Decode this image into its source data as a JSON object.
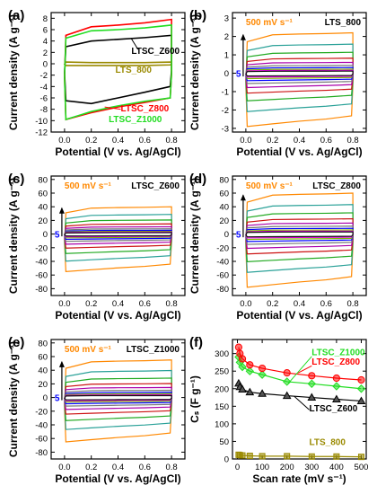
{
  "chart_data": [
    {
      "id": "a",
      "type": "line",
      "panel_label": "(a)",
      "xlabel": "Potential (V vs. Ag/AgCl)",
      "ylabel": "Current density (A g⁻¹)",
      "xlim": [
        -0.1,
        0.9
      ],
      "ylim": [
        -12,
        9
      ],
      "xticks": [
        "0.0",
        "0.2",
        "0.4",
        "0.6",
        "0.8"
      ],
      "yticks": [
        "-12",
        "-10",
        "-8",
        "-6",
        "-4",
        "-2",
        "0",
        "2",
        "4",
        "6",
        "8"
      ],
      "series": [
        {
          "name": "LTSC_Z600",
          "color": "#000000",
          "top": [
            3,
            4,
            4.3,
            4.6,
            5.0
          ],
          "bottom": [
            -6.5,
            -7.0,
            -6.0,
            -5.0,
            -4.0
          ]
        },
        {
          "name": "LTS_800",
          "color": "#9a8a00",
          "top": [
            0.3,
            0.2,
            0.2,
            0.2,
            0.3
          ],
          "bottom": [
            -0.3,
            -0.3,
            -0.3,
            -0.3,
            -0.2
          ]
        },
        {
          "name": "LTSC_Z800",
          "color": "#ff0000",
          "top": [
            5,
            6.5,
            6.8,
            7.2,
            7.8
          ],
          "bottom": [
            -9.8,
            -8.6,
            -7.6,
            -6.8,
            -6.0
          ]
        },
        {
          "name": "LTSC_Z1000",
          "color": "#22dd22",
          "top": [
            4.5,
            5.8,
            6.0,
            6.3,
            6.8
          ],
          "bottom": [
            -9.8,
            -8.4,
            -7.4,
            -6.6,
            -6.0
          ]
        }
      ],
      "annotations": [
        "LTSC_Z600",
        "LTS_800",
        "LTSC_Z800",
        "LTSC_Z1000"
      ]
    },
    {
      "id": "b",
      "type": "line",
      "panel_label": "(b)",
      "xlabel": "Potential (V vs. Ag/AgCl)",
      "ylabel": "Current density (A g⁻¹)",
      "xlim": [
        -0.1,
        0.9
      ],
      "ylim": [
        -3.2,
        3.3
      ],
      "xticks": [
        "0.0",
        "0.2",
        "0.4",
        "0.6",
        "0.8"
      ],
      "yticks": [
        "-3",
        "-2",
        "-1",
        "0",
        "1",
        "2",
        "3"
      ],
      "title": "LTS_800",
      "rate_top": "500 mV s⁻¹",
      "rate_bottom": "5",
      "max_top": 2.2,
      "max_bottom": -2.9
    },
    {
      "id": "c",
      "type": "line",
      "panel_label": "(c)",
      "xlabel": "Potential (V vs. Ag/AgCl)",
      "ylabel": "Current density (A g⁻¹)",
      "xlim": [
        -0.1,
        0.9
      ],
      "ylim": [
        -90,
        85
      ],
      "xticks": [
        "0.0",
        "0.2",
        "0.4",
        "0.6",
        "0.8"
      ],
      "yticks": [
        "-80",
        "-60",
        "-40",
        "-20",
        "0",
        "20",
        "40",
        "60",
        "80"
      ],
      "title": "LTSC_Z600",
      "rate_top": "500 mV s⁻¹",
      "rate_bottom": "5",
      "max_top": 40,
      "max_bottom": -55
    },
    {
      "id": "d",
      "type": "line",
      "panel_label": "(d)",
      "xlabel": "Potential (V vs. Ag/AgCl)",
      "ylabel": "Current density (A g⁻¹)",
      "xlim": [
        -0.1,
        0.9
      ],
      "ylim": [
        -90,
        85
      ],
      "xticks": [
        "0.0",
        "0.2",
        "0.4",
        "0.6",
        "0.8"
      ],
      "yticks": [
        "-80",
        "-60",
        "-40",
        "-20",
        "0",
        "20",
        "40",
        "60",
        "80"
      ],
      "title": "LTSC_Z800",
      "rate_top": "500 mV s⁻¹",
      "rate_bottom": "5",
      "max_top": 60,
      "max_bottom": -78
    },
    {
      "id": "e",
      "type": "line",
      "panel_label": "(e)",
      "xlabel": "Potential (V vs. Ag/AgCl)",
      "ylabel": "Current density (A g⁻¹)",
      "xlim": [
        -0.1,
        0.9
      ],
      "ylim": [
        -90,
        85
      ],
      "xticks": [
        "0.0",
        "0.2",
        "0.4",
        "0.6",
        "0.8"
      ],
      "yticks": [
        "-80",
        "-60",
        "-40",
        "-20",
        "0",
        "20",
        "40",
        "60",
        "80"
      ],
      "title": "LTSC_Z1000",
      "rate_top": "500 mV s⁻¹",
      "rate_bottom": "5",
      "max_top": 55,
      "max_bottom": -65
    },
    {
      "id": "f",
      "type": "scatter",
      "panel_label": "(f)",
      "xlabel": "Scan rate (mV s⁻¹)",
      "ylabel": "Cₛ (F g⁻¹)",
      "xlim": [
        -20,
        520
      ],
      "ylim": [
        0,
        340
      ],
      "xticks": [
        "0",
        "100",
        "200",
        "300",
        "400",
        "500"
      ],
      "yticks": [
        "0",
        "50",
        "100",
        "150",
        "200",
        "250",
        "300"
      ],
      "x": [
        5,
        10,
        20,
        50,
        100,
        200,
        300,
        400,
        500
      ],
      "series": [
        {
          "name": "LTSC_Z1000",
          "color": "#22dd22",
          "marker": "diamond",
          "values": [
            290,
            275,
            262,
            250,
            240,
            220,
            214,
            207,
            200
          ]
        },
        {
          "name": "LTSC_Z800",
          "color": "#ff0000",
          "marker": "circle",
          "values": [
            318,
            300,
            285,
            268,
            258,
            245,
            237,
            230,
            225
          ]
        },
        {
          "name": "LTSC_Z600",
          "color": "#000000",
          "marker": "triangle",
          "values": [
            215,
            205,
            198,
            190,
            186,
            180,
            175,
            170,
            165
          ]
        },
        {
          "name": "LTS_800",
          "color": "#9a8a00",
          "marker": "square",
          "values": [
            12,
            11,
            10,
            9,
            8,
            8,
            7,
            7,
            6
          ]
        }
      ]
    }
  ],
  "colors": {
    "cv_cycle": [
      "#ff8800",
      "#2aa198",
      "#22aa22",
      "#cc1111",
      "#aa00aa",
      "#777777",
      "#0000ff",
      "#7fb800",
      "#dd00dd",
      "#111111"
    ]
  }
}
